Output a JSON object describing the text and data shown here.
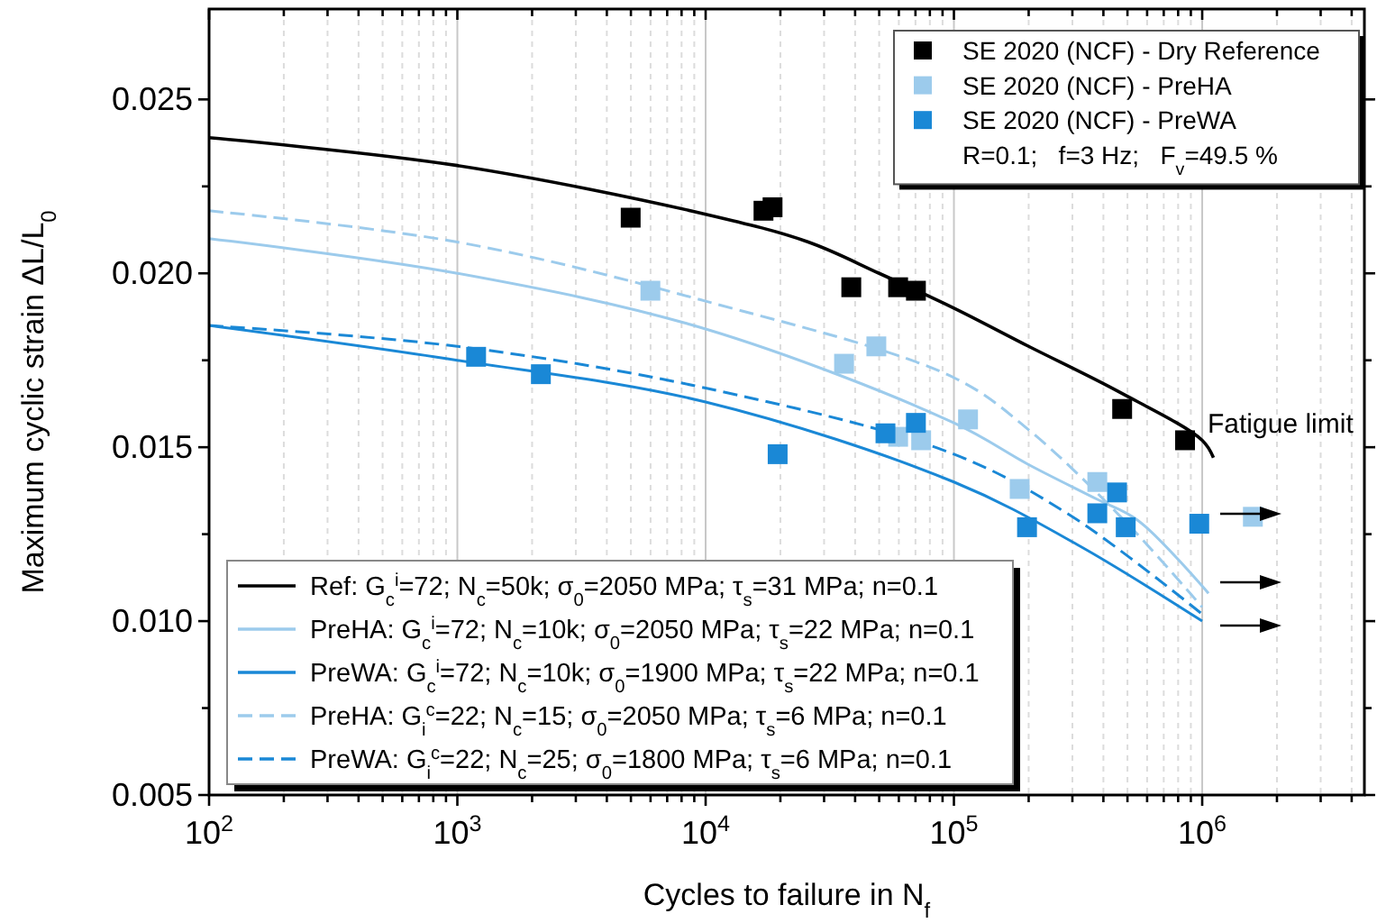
{
  "chart_data": {
    "type": "scatter",
    "xlabel": "Cycles to failure in N$_{f}$",
    "ylabel": "Maximum cyclic strain ΔL/L$_{0}$",
    "log": "x",
    "grid": "x",
    "legend": "top right",
    "xlim": [
      100,
      4500000
    ],
    "ylim": [
      0.005,
      0.0276
    ],
    "xticks": [
      {
        "value": 100,
        "label": "10$^{2}$"
      },
      {
        "value": 200,
        "label": null
      },
      {
        "value": 300,
        "label": null
      },
      {
        "value": 400,
        "label": null
      },
      {
        "value": 500,
        "label": null
      },
      {
        "value": 600,
        "label": null
      },
      {
        "value": 700,
        "label": null
      },
      {
        "value": 800,
        "label": null
      },
      {
        "value": 900,
        "label": null
      },
      {
        "value": 1000,
        "label": "10$^{3}$"
      },
      {
        "value": 2000,
        "label": null
      },
      {
        "value": 3000,
        "label": null
      },
      {
        "value": 4000,
        "label": null
      },
      {
        "value": 5000,
        "label": null
      },
      {
        "value": 6000,
        "label": null
      },
      {
        "value": 7000,
        "label": null
      },
      {
        "value": 8000,
        "label": null
      },
      {
        "value": 9000,
        "label": null
      },
      {
        "value": 10000,
        "label": "10$^{4}$"
      },
      {
        "value": 20000,
        "label": null
      },
      {
        "value": 30000,
        "label": null
      },
      {
        "value": 40000,
        "label": null
      },
      {
        "value": 50000,
        "label": null
      },
      {
        "value": 60000,
        "label": null
      },
      {
        "value": 70000,
        "label": null
      },
      {
        "value": 80000,
        "label": null
      },
      {
        "value": 90000,
        "label": null
      },
      {
        "value": 100000,
        "label": "10$^{5}$"
      },
      {
        "value": 200000,
        "label": null
      },
      {
        "value": 300000,
        "label": null
      },
      {
        "value": 400000,
        "label": null
      },
      {
        "value": 500000,
        "label": null
      },
      {
        "value": 600000,
        "label": null
      },
      {
        "value": 700000,
        "label": null
      },
      {
        "value": 800000,
        "label": null
      },
      {
        "value": 900000,
        "label": null
      },
      {
        "value": 1000000,
        "label": "10$^{6}$"
      },
      {
        "value": 2000000,
        "label": null
      },
      {
        "value": 3000000,
        "label": null
      },
      {
        "value": 4000000,
        "label": null
      }
    ],
    "yticks": [
      0.005,
      {
        "value": 0.0075,
        "label": null
      },
      {
        "value": 0.01,
        "label": "0.010"
      },
      {
        "value": 0.0125,
        "label": null
      },
      0.015,
      {
        "value": 0.0175,
        "label": null
      },
      {
        "value": 0.02,
        "label": "0.020"
      },
      {
        "value": 0.0225,
        "label": null
      },
      0.025
    ],
    "series": [
      {
        "name": "SE 2020 (NCF) - Dry Reference",
        "marker": "square",
        "color": "#000000",
        "x": [
          4990,
          17100,
          18600,
          38600,
          59600,
          70300,
          476000,
          853000
        ],
        "values": [
          0.0216,
          0.0218,
          0.0219,
          0.0196,
          0.0196,
          0.0195,
          0.0161,
          0.0152
        ]
      },
      {
        "name": "SE 2020 (NCF) - PreHA",
        "marker": "square",
        "color": "#9ccbec",
        "x": [
          5990,
          36100,
          48700,
          59600,
          73800,
          114000,
          184000,
          378000,
          1600000
        ],
        "values": [
          0.0195,
          0.0174,
          0.0179,
          0.0153,
          0.0152,
          0.0158,
          0.0138,
          0.014,
          0.013
        ]
      },
      {
        "name": "SE 2020 (NCF) - PreWA",
        "marker": "square",
        "color": "#1a88d6",
        "x": [
          1190,
          2170,
          19500,
          53000,
          70300,
          197000,
          378000,
          454000,
          492000,
          973000
        ],
        "values": [
          0.0176,
          0.0171,
          0.0148,
          0.0154,
          0.0157,
          0.0127,
          0.0131,
          0.0137,
          0.0127,
          0.0128
        ]
      },
      {
        "name": "Ref: G$_{c}$$^{i}$=72; N$_{c}$=50k; σ$_{0}$=2050 MPa; τ$_{s}$=31 MPa; n=0.1",
        "type": "line",
        "line_style": "solid",
        "color": "#000000",
        "x": [
          100,
          1000,
          10000,
          25900,
          50000,
          100000,
          200000,
          460000,
          1000000,
          1110000
        ],
        "values": [
          0.0239,
          0.0231,
          0.0217,
          0.0209,
          0.02,
          0.019,
          0.0179,
          0.0166,
          0.0152,
          0.0147
        ]
      },
      {
        "name": "PreHA: G$_{c}$$^{i}$=72; N$_{c}$=10k; σ$_{0}$=2050 MPa; τ$_{s}$=22 MPa; n=0.1",
        "type": "line",
        "line_style": "solid",
        "color": "#9ccbec",
        "x": [
          100,
          1000,
          10000,
          100000,
          200000,
          378000,
          550000,
          1060000
        ],
        "values": [
          0.021,
          0.02,
          0.0184,
          0.0157,
          0.0145,
          0.0135,
          0.0129,
          0.0108
        ]
      },
      {
        "name": "PreWA: G$_{c}$$^{i}$=72; N$_{c}$=10k; σ$_{0}$=1900 MPa; τ$_{s}$=22 MPa; n=0.1",
        "type": "line",
        "line_style": "solid",
        "color": "#1a88d6",
        "x": [
          100,
          1000,
          10000,
          100000,
          314000,
          1000000
        ],
        "values": [
          0.0185,
          0.0175,
          0.0163,
          0.014,
          0.0122,
          0.01
        ]
      },
      {
        "name": "PreHA: G$_{i}$$^{c}$=22; N$_{c}$=15; σ$_{0}$=2050 MPa; τ$_{s}$=6 MPa; n=0.1",
        "type": "line",
        "line_style": "dashed",
        "color": "#9ccbec",
        "x": [
          100,
          1000,
          10000,
          100000,
          200000,
          500000,
          1000000
        ],
        "values": [
          0.0218,
          0.0209,
          0.0192,
          0.017,
          0.0155,
          0.0128,
          0.0104
        ]
      },
      {
        "name": "PreWA: G$_{i}$$^{c}$=22; N$_{c}$=25; σ$_{0}$=1800 MPa; τ$_{s}$=6 MPa; n=0.1",
        "type": "line",
        "line_style": "dashed",
        "color": "#1a88d6",
        "x": [
          100,
          1000,
          10000,
          100000,
          300000,
          1000000
        ],
        "values": [
          0.0185,
          0.0179,
          0.0167,
          0.0148,
          0.013,
          0.0102
        ]
      }
    ],
    "annotations": [
      "R=0.1;   f=3 Hz;   F$_{v}$=49.5 %",
      "Fatigue limit"
    ]
  }
}
